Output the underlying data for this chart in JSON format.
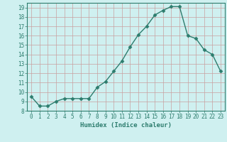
{
  "x": [
    0,
    1,
    2,
    3,
    4,
    5,
    6,
    7,
    8,
    9,
    10,
    11,
    12,
    13,
    14,
    15,
    16,
    17,
    18,
    19,
    20,
    21,
    22,
    23
  ],
  "y": [
    9.5,
    8.5,
    8.5,
    9.0,
    9.3,
    9.3,
    9.3,
    9.3,
    10.5,
    11.1,
    12.2,
    13.3,
    14.8,
    16.1,
    17.0,
    18.2,
    18.7,
    19.1,
    19.1,
    16.0,
    15.7,
    14.5,
    14.0,
    12.2
  ],
  "line_color": "#2d7d6e",
  "marker": "D",
  "marker_size": 2.5,
  "bg_color": "#cff0f0",
  "grid_color": "#c8a0a0",
  "xlabel": "Humidex (Indice chaleur)",
  "xlim": [
    -0.5,
    23.5
  ],
  "ylim": [
    8,
    19.5
  ],
  "yticks": [
    8,
    9,
    10,
    11,
    12,
    13,
    14,
    15,
    16,
    17,
    18,
    19
  ],
  "xticks": [
    0,
    1,
    2,
    3,
    4,
    5,
    6,
    7,
    8,
    9,
    10,
    11,
    12,
    13,
    14,
    15,
    16,
    17,
    18,
    19,
    20,
    21,
    22,
    23
  ],
  "tick_label_fontsize": 5.5,
  "xlabel_fontsize": 6.5,
  "line_width": 1.0
}
